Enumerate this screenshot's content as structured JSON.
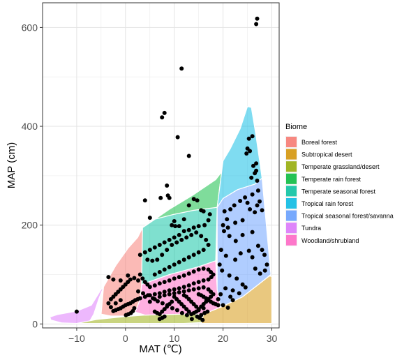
{
  "chart_data": {
    "type": "scatter",
    "title": "",
    "xlabel": "MAT (℃)",
    "ylabel": "MAP (cm)",
    "xlim": [
      -17,
      31.5
    ],
    "ylim": [
      -8,
      650
    ],
    "xticks": [
      -10,
      0,
      10,
      20,
      30
    ],
    "yticks": [
      0,
      200,
      400,
      600
    ],
    "grid": true,
    "legend": {
      "title": "Biome",
      "position": "right",
      "entries": [
        {
          "name": "Boreal forest",
          "color": "#F8766D"
        },
        {
          "name": "Subtropical desert",
          "color": "#D39200"
        },
        {
          "name": "Temperate grassland/desert",
          "color": "#93AA00"
        },
        {
          "name": "Temperate rain forest",
          "color": "#00BA38"
        },
        {
          "name": "Temperate seasonal forest",
          "color": "#00C19F"
        },
        {
          "name": "Tropical rain forest",
          "color": "#00B9E3"
        },
        {
          "name": "Tropical seasonal forest/savanna",
          "color": "#619CFF"
        },
        {
          "name": "Tundra",
          "color": "#DB72FB"
        },
        {
          "name": "Woodland/shrubland",
          "color": "#FF61C3"
        }
      ]
    },
    "regions": [
      {
        "biome": "Tundra",
        "color": "#DB72FB",
        "polygon": [
          [
            -15.5,
            14
          ],
          [
            -14,
            19
          ],
          [
            -10,
            26
          ],
          [
            -7,
            38
          ],
          [
            -5,
            70
          ],
          [
            -4.5,
            75
          ],
          [
            -5.5,
            50
          ],
          [
            -6.5,
            20
          ],
          [
            -7.5,
            3
          ],
          [
            -10,
            1
          ],
          [
            -13,
            2
          ],
          [
            -15.3,
            8
          ]
        ]
      },
      {
        "biome": "Boreal forest",
        "color": "#F8766D",
        "polygon": [
          [
            -5,
            20
          ],
          [
            -4.5,
            75
          ],
          [
            -2,
            118
          ],
          [
            0.5,
            153
          ],
          [
            2.5,
            175
          ],
          [
            3.5,
            195
          ],
          [
            3.3,
            80
          ],
          [
            3,
            50
          ],
          [
            2,
            24
          ],
          [
            0,
            16
          ],
          [
            -3,
            16
          ]
        ]
      },
      {
        "biome": "Temperate grassland/desert",
        "color": "#93AA00",
        "polygon": [
          [
            -10,
            1
          ],
          [
            -6,
            9
          ],
          [
            0,
            15
          ],
          [
            4,
            18
          ],
          [
            8,
            19
          ],
          [
            12,
            20
          ],
          [
            15.5,
            20
          ],
          [
            16,
            3
          ],
          [
            12,
            1
          ],
          [
            4,
            1
          ],
          [
            -4,
            1
          ]
        ]
      },
      {
        "biome": "Subtropical desert",
        "color": "#D39200",
        "polygon": [
          [
            15.5,
            1
          ],
          [
            16,
            20
          ],
          [
            19.5,
            34
          ],
          [
            24,
            55
          ],
          [
            27,
            78
          ],
          [
            29.5,
            97
          ],
          [
            30,
            96
          ],
          [
            30,
            1
          ]
        ]
      },
      {
        "biome": "Woodland/shrubland",
        "color": "#FF61C3",
        "polygon": [
          [
            2,
            24
          ],
          [
            3,
            50
          ],
          [
            3.3,
            80
          ],
          [
            9,
            100
          ],
          [
            15,
            116
          ],
          [
            18.5,
            128
          ],
          [
            18.8,
            70
          ],
          [
            19.5,
            34
          ],
          [
            16,
            20
          ],
          [
            12,
            20
          ],
          [
            8,
            19
          ],
          [
            4,
            18
          ]
        ]
      },
      {
        "biome": "Temperate seasonal forest",
        "color": "#00C19F",
        "polygon": [
          [
            3.3,
            80
          ],
          [
            3.5,
            195
          ],
          [
            6,
            212
          ],
          [
            10,
            222
          ],
          [
            14,
            230
          ],
          [
            18.8,
            236
          ],
          [
            18.5,
            128
          ],
          [
            15,
            116
          ],
          [
            9,
            100
          ]
        ]
      },
      {
        "biome": "Temperate rain forest",
        "color": "#00BA38",
        "polygon": [
          [
            3.5,
            195
          ],
          [
            5,
            205
          ],
          [
            9,
            232
          ],
          [
            14,
            262
          ],
          [
            18.5,
            292
          ],
          [
            19.5,
            305
          ],
          [
            20,
            330
          ],
          [
            18.8,
            236
          ],
          [
            14,
            230
          ],
          [
            10,
            222
          ],
          [
            6,
            212
          ]
        ]
      },
      {
        "biome": "Tropical seasonal forest/savanna",
        "color": "#619CFF",
        "polygon": [
          [
            18.8,
            70
          ],
          [
            18.8,
            236
          ],
          [
            20,
            254
          ],
          [
            23,
            272
          ],
          [
            26.5,
            283
          ],
          [
            28,
            295
          ],
          [
            29.8,
            100
          ],
          [
            27,
            78
          ],
          [
            24,
            55
          ],
          [
            19.5,
            34
          ]
        ]
      },
      {
        "biome": "Tropical rain forest",
        "color": "#00B9E3",
        "polygon": [
          [
            18.8,
            236
          ],
          [
            20,
            330
          ],
          [
            21.5,
            355
          ],
          [
            23.5,
            395
          ],
          [
            25,
            440
          ],
          [
            25.8,
            438
          ],
          [
            26.7,
            385
          ],
          [
            27.5,
            330
          ],
          [
            28,
            295
          ],
          [
            26.5,
            283
          ],
          [
            23,
            272
          ],
          [
            20,
            254
          ]
        ]
      }
    ],
    "points": [
      [
        27,
        618
      ],
      [
        26.8,
        607
      ],
      [
        11.5,
        517
      ],
      [
        8,
        427
      ],
      [
        7.5,
        418
      ],
      [
        10.7,
        378
      ],
      [
        13,
        340
      ],
      [
        26,
        380
      ],
      [
        25.3,
        375
      ],
      [
        25,
        355
      ],
      [
        24.8,
        345
      ],
      [
        25.5,
        350
      ],
      [
        26.8,
        325
      ],
      [
        26.5,
        305
      ],
      [
        27,
        290
      ],
      [
        27.2,
        270
      ],
      [
        26,
        262
      ],
      [
        26.8,
        310
      ],
      [
        26.2,
        320
      ],
      [
        25.8,
        296
      ],
      [
        24.5,
        256
      ],
      [
        23.5,
        249
      ],
      [
        22.3,
        240
      ],
      [
        21.5,
        232
      ],
      [
        20.3,
        228
      ],
      [
        20.8,
        212
      ],
      [
        20,
        200
      ],
      [
        21,
        195
      ],
      [
        22.5,
        205
      ],
      [
        24,
        210
      ],
      [
        25,
        245
      ],
      [
        25.5,
        232
      ],
      [
        26.5,
        226
      ],
      [
        27,
        240
      ],
      [
        27.5,
        248
      ],
      [
        28,
        230
      ],
      [
        20.2,
        188
      ],
      [
        21.3,
        178
      ],
      [
        22.6,
        168
      ],
      [
        24,
        180
      ],
      [
        26,
        186
      ],
      [
        27.2,
        158
      ],
      [
        28,
        150
      ],
      [
        28.5,
        140
      ],
      [
        29,
        120
      ],
      [
        28.6,
        108
      ],
      [
        27.6,
        102
      ],
      [
        26.6,
        112
      ],
      [
        26,
        135
      ],
      [
        25.3,
        148
      ],
      [
        23.6,
        143
      ],
      [
        22.5,
        130
      ],
      [
        20.6,
        138
      ],
      [
        19.6,
        150
      ],
      [
        19.3,
        120
      ],
      [
        19.8,
        108
      ],
      [
        21.3,
        98
      ],
      [
        22.8,
        92
      ],
      [
        24,
        80
      ],
      [
        24.6,
        74
      ],
      [
        23.3,
        62
      ],
      [
        22,
        68
      ],
      [
        20.5,
        72
      ],
      [
        19.5,
        60
      ],
      [
        19,
        50
      ],
      [
        20,
        38
      ],
      [
        21,
        33
      ],
      [
        22,
        48
      ],
      [
        21.5,
        55
      ],
      [
        4,
        250
      ],
      [
        5,
        215
      ],
      [
        7.2,
        255
      ],
      [
        8.7,
        260
      ],
      [
        8.5,
        280
      ],
      [
        9,
        255
      ],
      [
        10,
        208
      ],
      [
        9.5,
        200
      ],
      [
        10.2,
        198
      ],
      [
        11,
        198
      ],
      [
        12,
        212
      ],
      [
        13,
        240
      ],
      [
        14,
        253
      ],
      [
        14.7,
        250
      ],
      [
        15.5,
        230
      ],
      [
        16,
        228
      ],
      [
        17.3,
        222
      ],
      [
        17,
        210
      ],
      [
        16.2,
        200
      ],
      [
        15,
        198
      ],
      [
        14,
        195
      ],
      [
        13,
        190
      ],
      [
        12,
        188
      ],
      [
        11,
        180
      ],
      [
        10,
        175
      ],
      [
        9,
        170
      ],
      [
        8,
        165
      ],
      [
        7,
        160
      ],
      [
        6,
        155
      ],
      [
        5,
        150
      ],
      [
        4,
        145
      ],
      [
        3,
        140
      ],
      [
        4.5,
        130
      ],
      [
        5.5,
        128
      ],
      [
        6.5,
        130
      ],
      [
        7.5,
        140
      ],
      [
        8.5,
        150
      ],
      [
        9.5,
        160
      ],
      [
        10.5,
        165
      ],
      [
        11.5,
        170
      ],
      [
        12.5,
        175
      ],
      [
        13.5,
        180
      ],
      [
        14.5,
        185
      ],
      [
        15.5,
        178
      ],
      [
        16.5,
        170
      ],
      [
        17,
        160
      ],
      [
        16,
        150
      ],
      [
        15,
        145
      ],
      [
        14,
        140
      ],
      [
        13,
        135
      ],
      [
        12,
        130
      ],
      [
        11,
        125
      ],
      [
        10,
        120
      ],
      [
        9,
        115
      ],
      [
        8,
        110
      ],
      [
        7,
        105
      ],
      [
        6,
        100
      ],
      [
        3,
        100
      ],
      [
        3.5,
        92
      ],
      [
        4,
        85
      ],
      [
        4.5,
        80
      ],
      [
        5,
        75
      ],
      [
        6,
        78
      ],
      [
        7,
        82
      ],
      [
        8,
        85
      ],
      [
        9,
        88
      ],
      [
        10,
        92
      ],
      [
        11,
        95
      ],
      [
        12,
        98
      ],
      [
        13,
        102
      ],
      [
        14,
        106
      ],
      [
        15,
        110
      ],
      [
        16,
        112
      ],
      [
        17,
        110
      ],
      [
        17.5,
        105
      ],
      [
        18,
        100
      ],
      [
        17.6,
        95
      ],
      [
        17,
        90
      ],
      [
        16,
        88
      ],
      [
        15,
        85
      ],
      [
        14,
        82
      ],
      [
        13,
        78
      ],
      [
        12,
        75
      ],
      [
        11,
        72
      ],
      [
        10,
        70
      ],
      [
        9,
        68
      ],
      [
        8,
        65
      ],
      [
        7,
        62
      ],
      [
        6,
        60
      ],
      [
        5,
        58
      ],
      [
        4,
        55
      ],
      [
        3,
        52
      ],
      [
        2.5,
        50
      ],
      [
        2,
        48
      ],
      [
        1.5,
        45
      ],
      [
        1,
        42
      ],
      [
        0.5,
        40
      ],
      [
        0,
        38
      ],
      [
        -0.5,
        35
      ],
      [
        -1,
        32
      ],
      [
        -1.5,
        30
      ],
      [
        -2,
        28
      ],
      [
        -2.5,
        26
      ],
      [
        -3,
        34
      ],
      [
        -3.5,
        42
      ],
      [
        -3,
        50
      ],
      [
        -2.5,
        55
      ],
      [
        -2,
        60
      ],
      [
        -1.5,
        65
      ],
      [
        -1,
        70
      ],
      [
        -0.5,
        75
      ],
      [
        0,
        80
      ],
      [
        0.5,
        85
      ],
      [
        1,
        90
      ],
      [
        -3.5,
        95
      ],
      [
        -2.5,
        90
      ],
      [
        -1,
        88
      ],
      [
        0.5,
        98
      ],
      [
        1.8,
        93
      ],
      [
        2.6,
        88
      ],
      [
        -2,
        42
      ],
      [
        -1,
        48
      ],
      [
        1.8,
        32
      ],
      [
        1.5,
        26
      ],
      [
        1.1,
        22
      ],
      [
        0.6,
        20
      ],
      [
        0.1,
        18
      ],
      [
        5,
        45
      ],
      [
        6,
        50
      ],
      [
        7,
        55
      ],
      [
        8,
        58
      ],
      [
        9,
        60
      ],
      [
        10,
        62
      ],
      [
        11,
        64
      ],
      [
        12,
        66
      ],
      [
        13,
        68
      ],
      [
        14,
        70
      ],
      [
        15,
        72
      ],
      [
        16,
        74
      ],
      [
        17,
        70
      ],
      [
        17.5,
        65
      ],
      [
        18,
        60
      ],
      [
        17.5,
        55
      ],
      [
        17,
        50
      ],
      [
        16.5,
        45
      ],
      [
        16,
        40
      ],
      [
        15.5,
        35
      ],
      [
        15,
        30
      ],
      [
        14.5,
        25
      ],
      [
        14,
        22
      ],
      [
        13.5,
        20
      ],
      [
        13,
        25
      ],
      [
        12.5,
        30
      ],
      [
        12,
        35
      ],
      [
        11.5,
        40
      ],
      [
        11,
        45
      ],
      [
        10.5,
        50
      ],
      [
        10,
        55
      ],
      [
        9.5,
        45
      ],
      [
        9,
        40
      ],
      [
        8.5,
        35
      ],
      [
        8,
        30
      ],
      [
        7.5,
        25
      ],
      [
        7,
        20
      ],
      [
        6.5,
        22
      ],
      [
        6,
        25
      ],
      [
        7,
        10
      ],
      [
        7.5,
        12
      ],
      [
        8,
        15
      ],
      [
        15,
        60
      ],
      [
        15.5,
        58
      ],
      [
        16,
        55
      ],
      [
        16.5,
        52
      ],
      [
        17,
        48
      ],
      [
        17.5,
        45
      ],
      [
        18,
        42
      ],
      [
        18.5,
        40
      ],
      [
        19,
        38
      ],
      [
        16,
        32
      ],
      [
        15,
        28
      ],
      [
        14.5,
        35
      ],
      [
        14,
        40
      ],
      [
        13.5,
        45
      ],
      [
        13,
        50
      ],
      [
        12.5,
        55
      ],
      [
        12,
        58
      ],
      [
        15.5,
        18
      ],
      [
        16.2,
        22
      ],
      [
        16.8,
        25
      ],
      [
        15.2,
        12
      ],
      [
        15.8,
        8
      ],
      [
        14.7,
        15
      ],
      [
        13.6,
        10
      ],
      [
        12.6,
        18
      ],
      [
        11.6,
        22
      ],
      [
        10.6,
        28
      ],
      [
        9.6,
        32
      ],
      [
        8.6,
        38
      ],
      [
        7.6,
        42
      ],
      [
        6.6,
        46
      ],
      [
        5.6,
        52
      ],
      [
        4.6,
        58
      ],
      [
        3.6,
        62
      ],
      [
        2.6,
        66
      ],
      [
        -10,
        25
      ]
    ]
  }
}
